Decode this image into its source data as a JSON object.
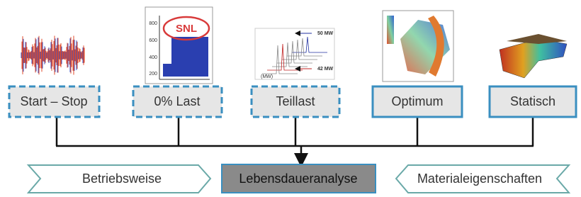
{
  "boxes": [
    {
      "label": "Start – Stop"
    },
    {
      "label": "0% Last"
    },
    {
      "label": "Teillast"
    },
    {
      "label": "Optimum"
    },
    {
      "label": "Statisch"
    }
  ],
  "images": {
    "snl": "SNL",
    "y_ticks": [
      "800",
      "600",
      "400",
      "200"
    ],
    "teillast_top": "50 MW",
    "teillast_bottom": "42 MW",
    "teillast_axis": "(MW)"
  },
  "bottom": {
    "left": "Betriebsweise",
    "center": "Lebensdaueranalyse",
    "right": "Materialeigenschaften"
  }
}
